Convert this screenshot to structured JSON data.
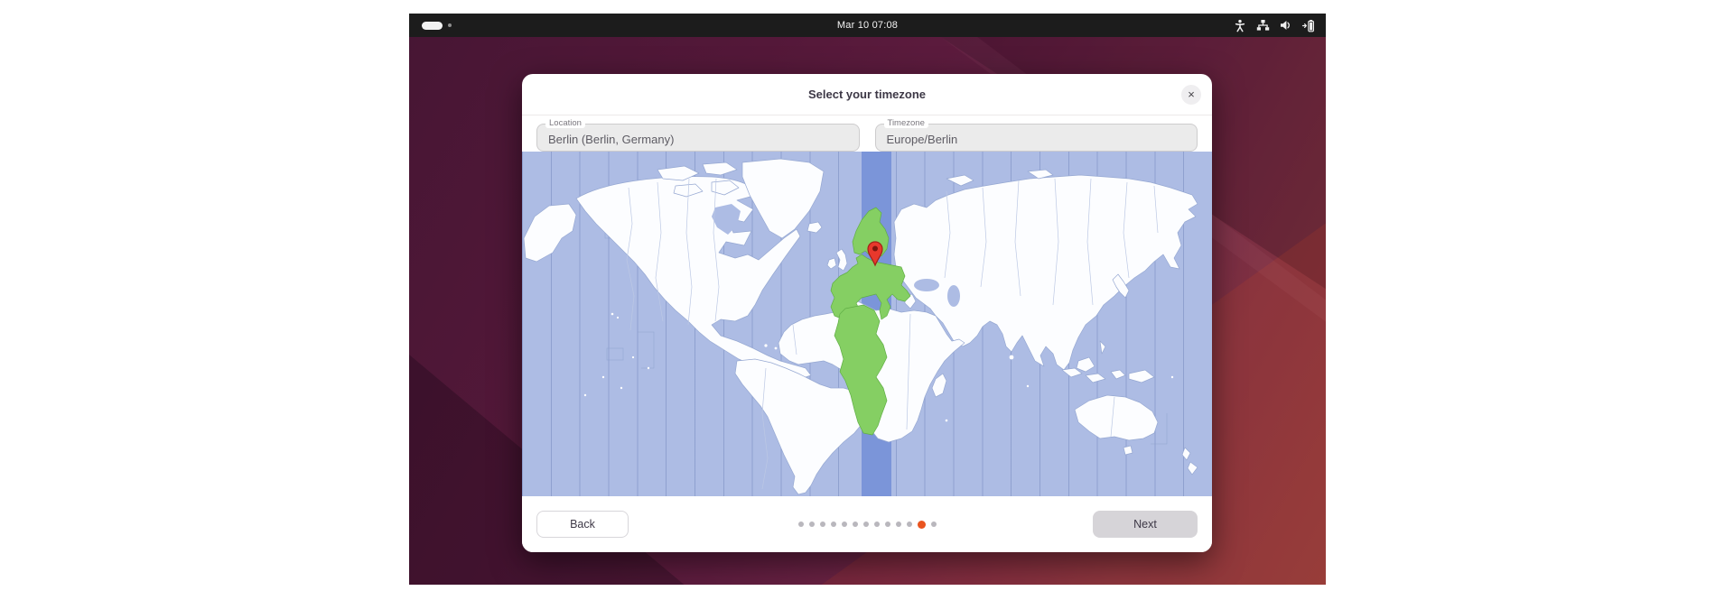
{
  "topbar": {
    "clock": "Mar 10 07:08",
    "workspace_indicator": {
      "workspaces": 2,
      "current": 1
    },
    "status_icons": [
      "accessibility-icon",
      "network-wired-icon",
      "volume-icon",
      "battery-icon"
    ]
  },
  "dialog": {
    "title": "Select your timezone",
    "close_label": "×",
    "fields": {
      "location": {
        "label": "Location",
        "value": "Berlin (Berlin, Germany)"
      },
      "timezone": {
        "label": "Timezone",
        "value": "Europe/Berlin"
      }
    },
    "map": {
      "pin_city": "Berlin",
      "selected_zone": "Europe/Berlin"
    },
    "footer": {
      "back_label": "Back",
      "next_label": "Next",
      "pages": {
        "total": 13,
        "current": 12
      }
    }
  },
  "colors": {
    "accent": "#e95420",
    "panel_bg": "#1c1c1c",
    "ocean": "#adbce4",
    "timezone_band": "#7b95d9",
    "zone_green": "#85cf63",
    "pin_red": "#e8382c",
    "land": "#fcfdff"
  }
}
